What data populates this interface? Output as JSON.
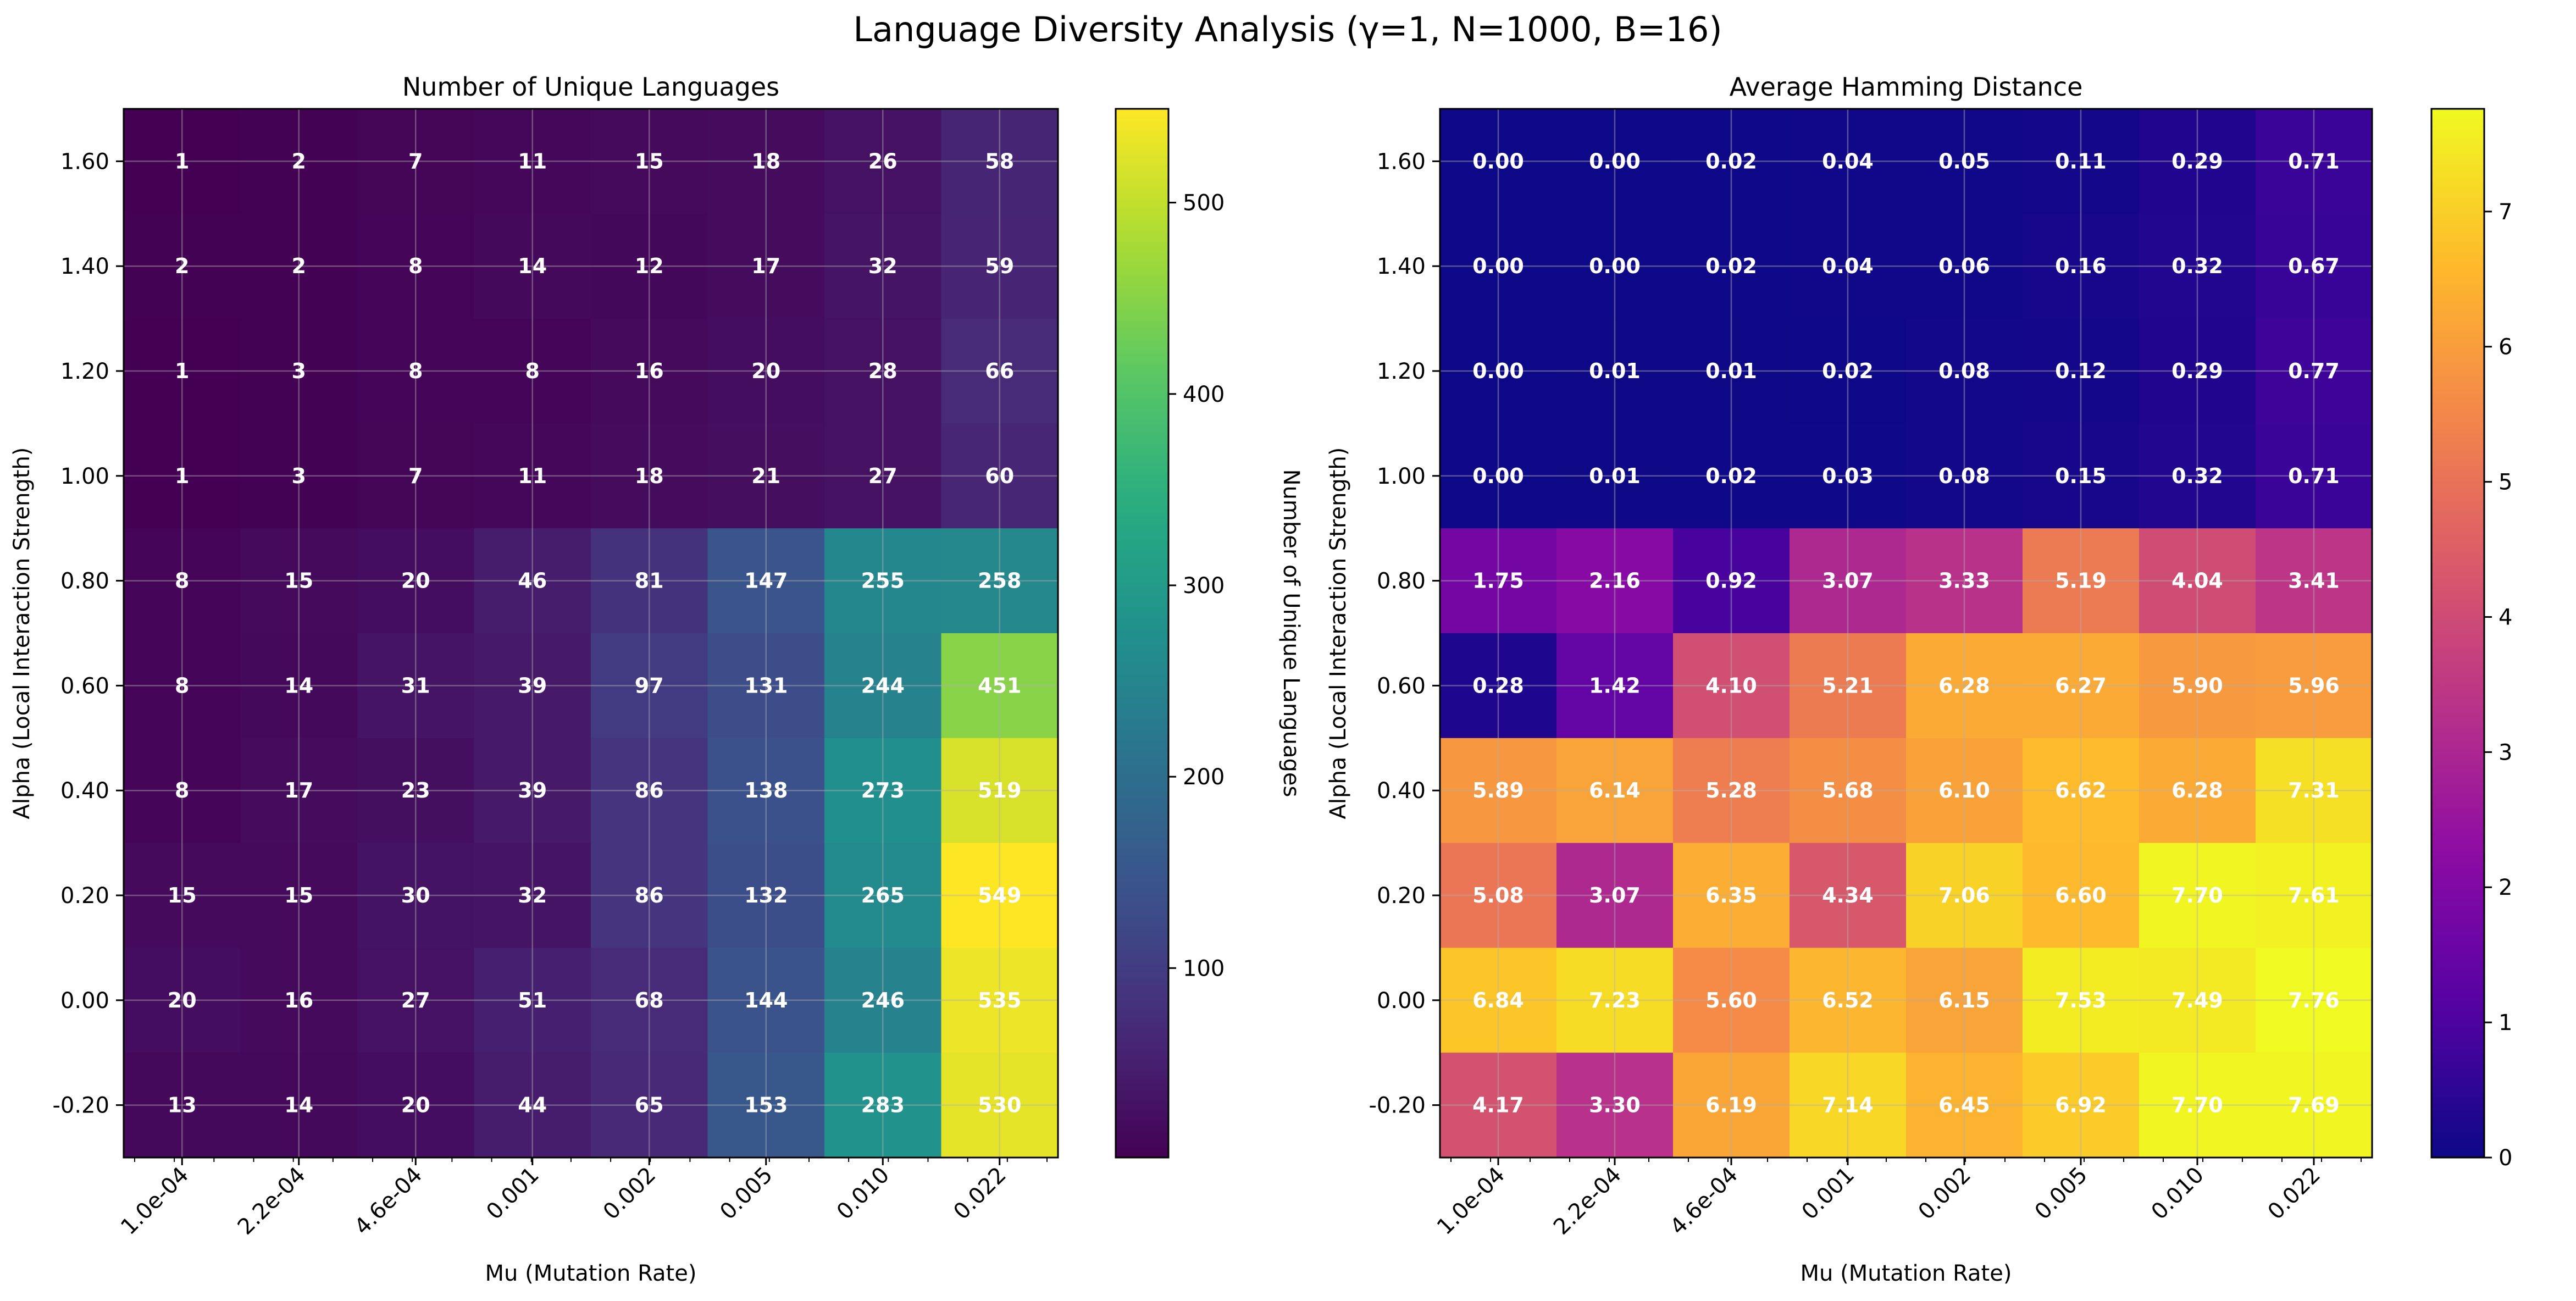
{
  "suptitle": "Language Diversity Analysis (γ=1, N=1000, B=16)",
  "chart_data": [
    {
      "type": "heatmap",
      "title": "Number of Unique Languages",
      "xlabel": "Mu (Mutation Rate)",
      "ylabel": "Alpha (Local Interaction Strength)",
      "x_scale": "log",
      "x_ticklabels": [
        "1.0e-04",
        "2.2e-04",
        "4.6e-04",
        "0.001",
        "0.002",
        "0.005",
        "0.010",
        "0.022"
      ],
      "y_ticklabels": [
        "1.60",
        "1.40",
        "1.20",
        "1.00",
        "0.80",
        "0.60",
        "0.40",
        "0.20",
        "0.00",
        "-0.20"
      ],
      "value_format": "int",
      "values": [
        [
          1,
          2,
          7,
          11,
          15,
          18,
          26,
          58
        ],
        [
          2,
          2,
          8,
          14,
          12,
          17,
          32,
          59
        ],
        [
          1,
          3,
          8,
          8,
          16,
          20,
          28,
          66
        ],
        [
          1,
          3,
          7,
          11,
          18,
          21,
          27,
          60
        ],
        [
          8,
          15,
          20,
          46,
          81,
          147,
          255,
          258
        ],
        [
          8,
          14,
          31,
          39,
          97,
          131,
          244,
          451
        ],
        [
          8,
          17,
          23,
          39,
          86,
          138,
          273,
          519
        ],
        [
          15,
          15,
          30,
          32,
          86,
          132,
          265,
          549
        ],
        [
          20,
          16,
          27,
          51,
          68,
          144,
          246,
          535
        ],
        [
          13,
          14,
          20,
          44,
          65,
          153,
          283,
          530
        ]
      ],
      "colormap": "viridis",
      "vmin": 1,
      "vmax": 549,
      "colorbar_label": "Number of Unique Languages",
      "colorbar_ticks": [
        100,
        200,
        300,
        400,
        500
      ],
      "colorbar_ticklabels": [
        "100",
        "200",
        "300",
        "400",
        "500"
      ],
      "grid": true
    },
    {
      "type": "heatmap",
      "title": "Average Hamming Distance",
      "xlabel": "Mu (Mutation Rate)",
      "ylabel": "Alpha (Local Interaction Strength)",
      "x_scale": "log",
      "x_ticklabels": [
        "1.0e-04",
        "2.2e-04",
        "4.6e-04",
        "0.001",
        "0.002",
        "0.005",
        "0.010",
        "0.022"
      ],
      "y_ticklabels": [
        "1.60",
        "1.40",
        "1.20",
        "1.00",
        "0.80",
        "0.60",
        "0.40",
        "0.20",
        "0.00",
        "-0.20"
      ],
      "value_format": "2dp",
      "values": [
        [
          0.0,
          0.0,
          0.02,
          0.04,
          0.05,
          0.11,
          0.29,
          0.71
        ],
        [
          0.0,
          0.0,
          0.02,
          0.04,
          0.06,
          0.16,
          0.32,
          0.67
        ],
        [
          0.0,
          0.01,
          0.01,
          0.02,
          0.08,
          0.12,
          0.29,
          0.77
        ],
        [
          0.0,
          0.01,
          0.02,
          0.03,
          0.08,
          0.15,
          0.32,
          0.71
        ],
        [
          1.75,
          2.16,
          0.92,
          3.07,
          3.33,
          5.19,
          4.04,
          3.41
        ],
        [
          0.28,
          1.42,
          4.1,
          5.21,
          6.28,
          6.27,
          5.9,
          5.96
        ],
        [
          5.89,
          6.14,
          5.28,
          5.68,
          6.1,
          6.62,
          6.28,
          7.31
        ],
        [
          5.08,
          3.07,
          6.35,
          4.34,
          7.06,
          6.6,
          7.7,
          7.61
        ],
        [
          6.84,
          7.23,
          5.6,
          6.52,
          6.15,
          7.53,
          7.49,
          7.76
        ],
        [
          4.17,
          3.3,
          6.19,
          7.14,
          6.45,
          6.92,
          7.7,
          7.69
        ]
      ],
      "colormap": "plasma",
      "vmin": 0,
      "vmax": 7.76,
      "colorbar_label": "Average Hamming Distance",
      "colorbar_ticks": [
        0,
        1,
        2,
        3,
        4,
        5,
        6,
        7
      ],
      "colorbar_ticklabels": [
        "0",
        "1",
        "2",
        "3",
        "4",
        "5",
        "6",
        "7"
      ],
      "grid": true
    }
  ]
}
